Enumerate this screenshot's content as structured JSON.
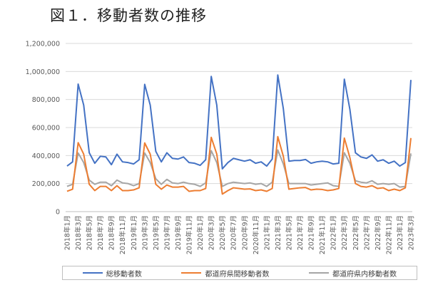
{
  "chart_data": {
    "type": "line",
    "title": "図１．移動者数の推移",
    "xlabel": "",
    "ylabel": "",
    "ylim": [
      0,
      1200000
    ],
    "yticks": [
      0,
      200000,
      400000,
      600000,
      800000,
      1000000,
      1200000
    ],
    "ytick_labels": [
      "0",
      "200,000",
      "400,000",
      "600,000",
      "800,000",
      "1,000,000",
      "1,200,000"
    ],
    "grid": true,
    "legend_position": "bottom",
    "categories": [
      "2018年1月",
      "2018年2月",
      "2018年3月",
      "2018年4月",
      "2018年5月",
      "2018年6月",
      "2018年7月",
      "2018年8月",
      "2018年9月",
      "2018年10月",
      "2018年11月",
      "2018年12月",
      "2019年1月",
      "2019年2月",
      "2019年3月",
      "2019年4月",
      "2019年5月",
      "2019年6月",
      "2019年7月",
      "2019年8月",
      "2019年9月",
      "2019年10月",
      "2019年11月",
      "2019年12月",
      "2020年1月",
      "2020年2月",
      "2020年3月",
      "2020年4月",
      "2020年5月",
      "2020年6月",
      "2020年7月",
      "2020年8月",
      "2020年9月",
      "2020年10月",
      "2020年11月",
      "2020年12月",
      "2021年1月",
      "2021年2月",
      "2021年3月",
      "2021年4月",
      "2021年5月",
      "2021年6月",
      "2021年7月",
      "2021年8月",
      "2021年9月",
      "2021年10月",
      "2021年11月",
      "2021年12月",
      "2022年1月",
      "2022年2月",
      "2022年3月",
      "2022年4月",
      "2022年5月",
      "2022年6月",
      "2022年7月",
      "2022年8月",
      "2022年9月",
      "2022年10月",
      "2022年11月",
      "2022年12月",
      "2023年1月",
      "2023年2月",
      "2023年3月"
    ],
    "series": [
      {
        "name": "総移動者数",
        "color": "#4472c4",
        "values": [
          325000,
          355000,
          910000,
          760000,
          420000,
          345000,
          395000,
          390000,
          335000,
          410000,
          355000,
          350000,
          340000,
          370000,
          908000,
          760000,
          430000,
          355000,
          420000,
          380000,
          375000,
          390000,
          350000,
          345000,
          330000,
          370000,
          965000,
          760000,
          305000,
          350000,
          380000,
          370000,
          360000,
          370000,
          345000,
          355000,
          325000,
          375000,
          975000,
          735000,
          360000,
          365000,
          365000,
          372000,
          345000,
          355000,
          360000,
          355000,
          340000,
          345000,
          945000,
          730000,
          420000,
          390000,
          380000,
          405000,
          360000,
          370000,
          345000,
          360000,
          325000,
          350000,
          940000
        ]
      },
      {
        "name": "都道府県間移動者数",
        "color": "#ed7d31",
        "values": [
          145000,
          160000,
          492000,
          410000,
          195000,
          150000,
          180000,
          180000,
          150000,
          185000,
          150000,
          150000,
          155000,
          170000,
          490000,
          410000,
          195000,
          160000,
          190000,
          175000,
          175000,
          180000,
          145000,
          150000,
          150000,
          165000,
          530000,
          410000,
          125000,
          150000,
          170000,
          165000,
          160000,
          162000,
          150000,
          155000,
          145000,
          165000,
          535000,
          395000,
          160000,
          165000,
          170000,
          172000,
          155000,
          160000,
          158000,
          150000,
          155000,
          165000,
          525000,
          385000,
          200000,
          180000,
          175000,
          185000,
          165000,
          170000,
          150000,
          160000,
          150000,
          170000,
          525000
        ]
      },
      {
        "name": "都道府県内移動者数",
        "color": "#a5a5a5",
        "values": [
          180000,
          195000,
          418000,
          350000,
          225000,
          195000,
          210000,
          210000,
          185000,
          225000,
          205000,
          200000,
          185000,
          200000,
          418000,
          350000,
          235000,
          195000,
          230000,
          205000,
          200000,
          210000,
          200000,
          195000,
          180000,
          205000,
          435000,
          350000,
          180000,
          200000,
          210000,
          205000,
          200000,
          205000,
          195000,
          200000,
          180000,
          210000,
          440000,
          340000,
          200000,
          200000,
          200000,
          200000,
          190000,
          195000,
          200000,
          205000,
          185000,
          180000,
          420000,
          345000,
          220000,
          210000,
          205000,
          220000,
          195000,
          200000,
          195000,
          200000,
          175000,
          180000,
          415000
        ]
      }
    ]
  }
}
